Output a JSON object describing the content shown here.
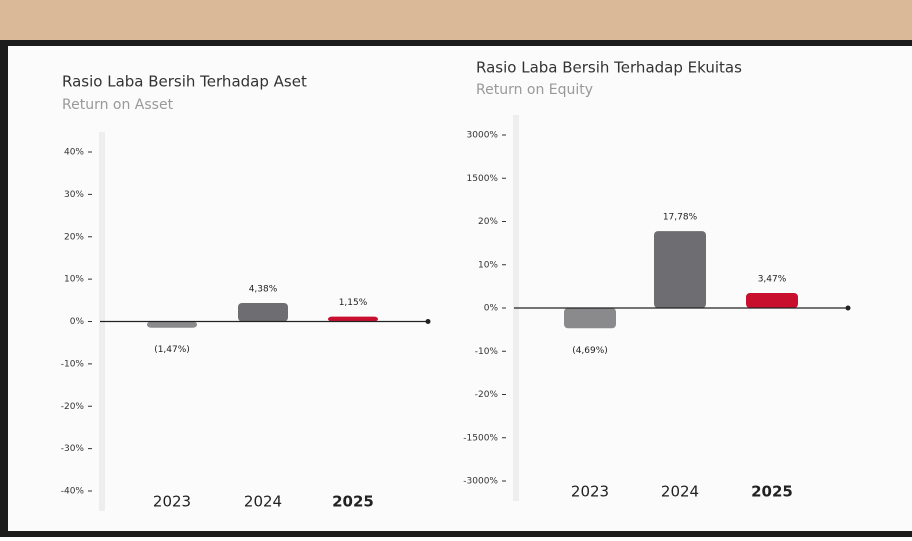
{
  "chart_data": [
    {
      "type": "bar",
      "title": "Rasio Laba Bersih Terhadap Aset",
      "subtitle": "Return on Asset",
      "categories": [
        "2023",
        "2024",
        "2025"
      ],
      "values": [
        -1.47,
        4.38,
        1.15
      ],
      "value_labels": [
        "(1,47%)",
        "4,38%",
        "1,15%"
      ],
      "colors": [
        "#8a8a8c",
        "#6e6e72",
        "#c8102e"
      ],
      "ylim": [
        -40,
        40
      ],
      "yticks": [
        {
          "value": 40,
          "label": "40%"
        },
        {
          "value": 30,
          "label": "30%"
        },
        {
          "value": 20,
          "label": "20%"
        },
        {
          "value": 10,
          "label": "10%"
        },
        {
          "value": 0,
          "label": "0%"
        },
        {
          "value": -10,
          "label": "-10%"
        },
        {
          "value": -20,
          "label": "-20%"
        },
        {
          "value": -30,
          "label": "-30%"
        },
        {
          "value": -40,
          "label": "-40%"
        }
      ]
    },
    {
      "type": "bar",
      "title": "Rasio Laba Bersih Terhadap Ekuitas",
      "subtitle": "Return on Equity",
      "categories": [
        "2023",
        "2024",
        "2025"
      ],
      "values": [
        -4.69,
        17.78,
        3.47
      ],
      "value_labels": [
        "(4,69%)",
        "17,78%",
        "3,47%"
      ],
      "colors": [
        "#8a8a8c",
        "#6e6e72",
        "#c8102e"
      ],
      "ylim": [
        -3000,
        3000
      ],
      "yticks": [
        {
          "value": 3000,
          "label": "3000%"
        },
        {
          "value": 1500,
          "label": "1500%"
        },
        {
          "value": 20,
          "label": "20%"
        },
        {
          "value": 10,
          "label": "10%"
        },
        {
          "value": 0,
          "label": "0%"
        },
        {
          "value": -10,
          "label": "-10%"
        },
        {
          "value": -20,
          "label": "-20%"
        },
        {
          "value": -1500,
          "label": "-1500%"
        },
        {
          "value": -3000,
          "label": "-3000%"
        }
      ]
    }
  ]
}
